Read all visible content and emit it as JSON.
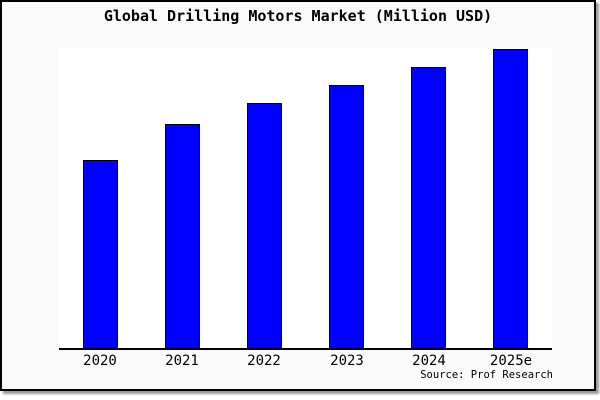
{
  "window": {
    "background": "#ffffff",
    "box_background": "#fafafa",
    "box_border_color": "#000000",
    "box_shadow_color": "#9a9a9a"
  },
  "chart_data": {
    "type": "bar",
    "title": "Global Drilling Motors Market (Million USD)",
    "categories": [
      "2020",
      "2021",
      "2022",
      "2023",
      "2024",
      "2025e"
    ],
    "values": [
      63,
      75,
      82,
      88,
      94,
      100
    ],
    "value_note": "y-axis has no tick labels or gridlines; values are relative bar heights as percent of the tallest (2025e) bar",
    "xlabel": "",
    "ylabel": "",
    "y_axis_visible": false,
    "gridlines": false,
    "legend": false,
    "plot_background": "#ffffff",
    "axis_color": "#000000",
    "bar_color": "#0000ff",
    "bar_border_color": "#000000",
    "source": "Source: Prof Research"
  }
}
